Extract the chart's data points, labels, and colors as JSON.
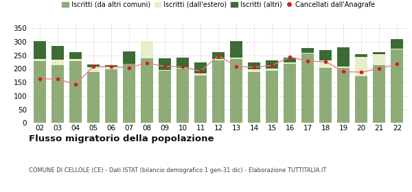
{
  "years": [
    "02",
    "03",
    "04",
    "05",
    "06",
    "07",
    "08",
    "09",
    "10",
    "11",
    "12",
    "13",
    "14",
    "15",
    "16",
    "17",
    "18",
    "19",
    "20",
    "21",
    "22"
  ],
  "iscritti_comuni": [
    228,
    213,
    228,
    188,
    198,
    218,
    240,
    193,
    200,
    175,
    233,
    238,
    188,
    193,
    218,
    258,
    203,
    203,
    173,
    213,
    273
  ],
  "iscritti_estero": [
    8,
    22,
    8,
    18,
    8,
    2,
    62,
    2,
    5,
    8,
    5,
    5,
    10,
    8,
    5,
    2,
    28,
    5,
    72,
    42,
    3
  ],
  "iscritti_altri": [
    67,
    50,
    25,
    10,
    8,
    45,
    0,
    45,
    38,
    42,
    25,
    60,
    25,
    30,
    18,
    18,
    38,
    72,
    10,
    8,
    35
  ],
  "cancellati": [
    163,
    163,
    143,
    208,
    208,
    205,
    222,
    209,
    208,
    192,
    249,
    210,
    206,
    213,
    244,
    229,
    227,
    190,
    188,
    201,
    218
  ],
  "color_comuni": "#8fac78",
  "color_estero": "#e8eecc",
  "color_altri": "#3d6b35",
  "color_cancellati": "#cc2222",
  "color_line": "#e08080",
  "title": "Flusso migratorio della popolazione",
  "subtitle": "COMUNE DI CELLOLE (CE) - Dati ISTAT (bilancio demografico 1 gen-31 dic) - Elaborazione TUTTITALIA.IT",
  "legend_labels": [
    "Iscritti (da altri comuni)",
    "Iscritti (dall'estero)",
    "Iscritti (altri)",
    "Cancellati dall'Anagrafe"
  ],
  "ylim": [
    0,
    370
  ],
  "yticks": [
    0,
    50,
    100,
    150,
    200,
    250,
    300,
    350
  ],
  "bg_color": "#ffffff",
  "grid_color": "#d0d0d0"
}
